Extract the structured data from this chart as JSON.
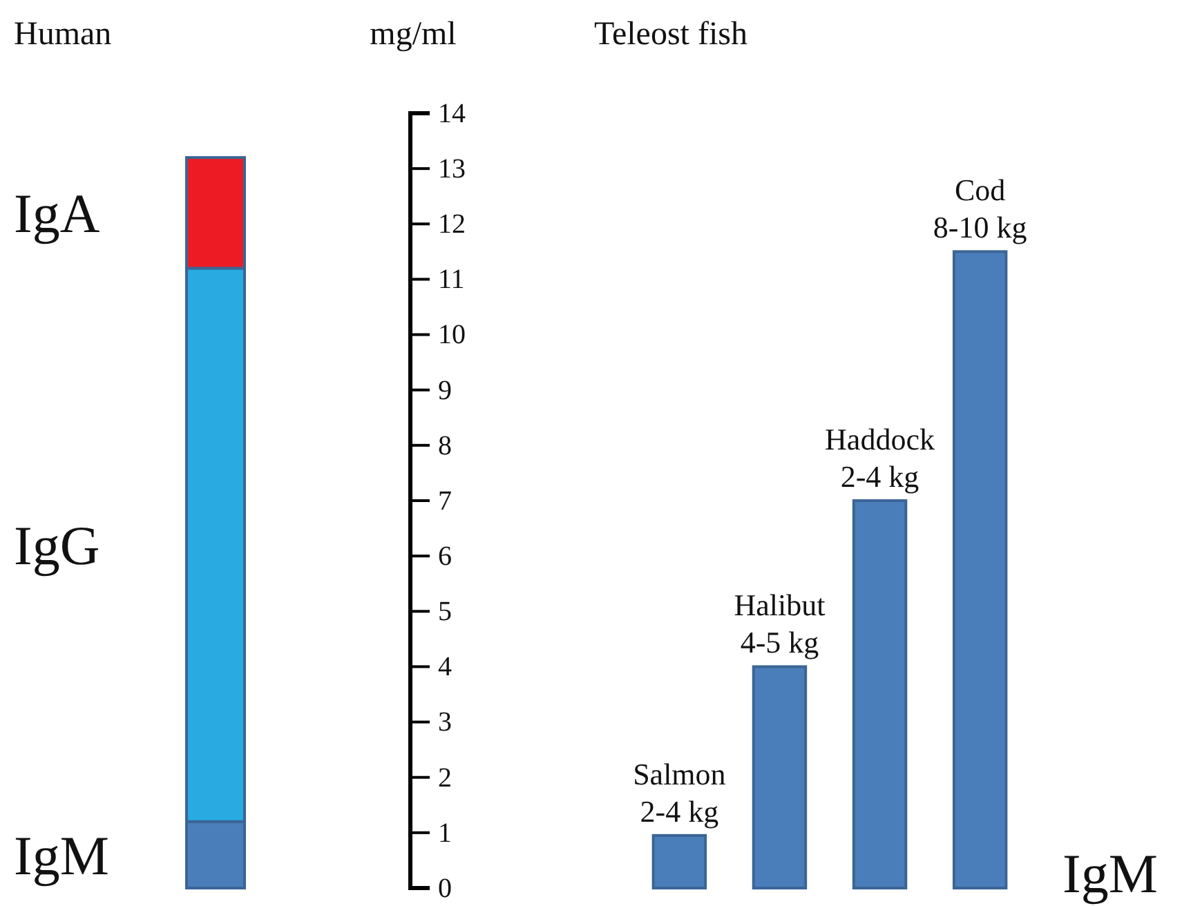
{
  "chart_data": [
    {
      "type": "bar",
      "title": "Human",
      "categories": [
        null
      ],
      "stacked": true,
      "ylim": [
        0,
        14
      ],
      "series": [
        {
          "name": "IgM",
          "color": "#4a7ebb",
          "values": [
            1.2
          ]
        },
        {
          "name": "IgG",
          "color": "#29abe2",
          "values": [
            10.0
          ]
        },
        {
          "name": "IgA",
          "color": "#ed1c24",
          "values": [
            2.0
          ]
        }
      ]
    },
    {
      "type": "bar",
      "title": "Teleost fish",
      "ylabel": "mg/ml",
      "categories": [
        "Salmon 2-4 kg",
        "Halibut 4-5 kg",
        "Haddock 2-4 kg",
        "Cod 8-10 kg"
      ],
      "ylim": [
        0,
        14
      ],
      "yticks": [
        0,
        1,
        2,
        3,
        4,
        5,
        6,
        7,
        8,
        9,
        10,
        11,
        12,
        13,
        14
      ],
      "series": [
        {
          "name": "IgM",
          "color": "#4a7ebb",
          "values": [
            0.95,
            4.0,
            7.0,
            11.5
          ]
        }
      ]
    }
  ]
}
